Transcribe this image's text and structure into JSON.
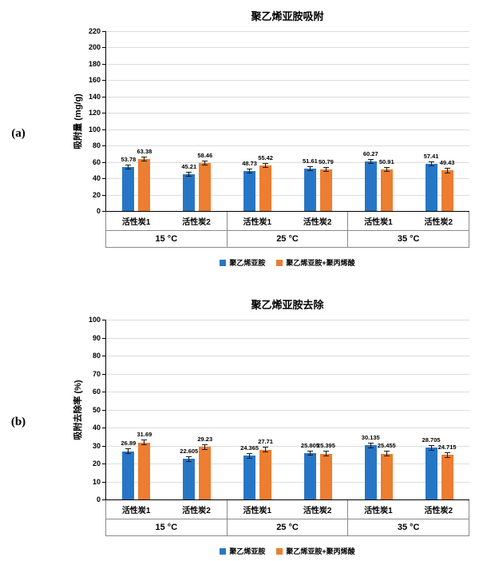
{
  "figures": [
    {
      "panel_label": "(a)"
    },
    {
      "panel_label": "(b)"
    }
  ],
  "colors": {
    "series1": "#2776C6",
    "series2": "#ED7D31",
    "gridline": "#DCDCDC",
    "axis": "#000000"
  },
  "chart_data": [
    {
      "type": "bar",
      "title": "聚乙烯亚胺吸附",
      "ylabel": "吸附量 (mg/g)",
      "ylim": [
        0,
        220
      ],
      "ytick_step": 20,
      "grid": true,
      "legend_position": "bottom",
      "groups": [
        "15 °C",
        "25 °C",
        "35 °C"
      ],
      "categories": [
        "活性炭1",
        "活性炭2",
        "活性炭1",
        "活性炭2",
        "活性炭1",
        "活性炭2"
      ],
      "series": [
        {
          "name": "聚乙烯亚胺",
          "color": "#2776C6",
          "values": [
            53.78,
            45.21,
            48.73,
            51.61,
            60.27,
            57.41
          ]
        },
        {
          "name": "聚乙烯亚胺+聚丙烯酸",
          "color": "#ED7D31",
          "values": [
            63.38,
            58.46,
            55.42,
            50.79,
            50.91,
            49.43
          ]
        }
      ],
      "error_bar": 3
    },
    {
      "type": "bar",
      "title": "聚乙烯亚胺去除",
      "ylabel": "吸附去除率 (%)",
      "ylim": [
        0,
        100
      ],
      "ytick_step": 10,
      "grid": true,
      "legend_position": "bottom",
      "groups": [
        "15 °C",
        "25 °C",
        "35 °C"
      ],
      "categories": [
        "活性炭1",
        "活性炭2",
        "活性炭1",
        "活性炭2",
        "活性炭1",
        "活性炭2"
      ],
      "series": [
        {
          "name": "聚乙烯亚胺",
          "color": "#2776C6",
          "values": [
            26.89,
            22.605,
            24.365,
            25.805,
            30.135,
            28.705
          ]
        },
        {
          "name": "聚乙烯亚胺+聚丙烯酸",
          "color": "#ED7D31",
          "values": [
            31.69,
            29.23,
            27.71,
            25.395,
            25.455,
            24.715
          ]
        }
      ],
      "error_bar": 1.5
    }
  ]
}
